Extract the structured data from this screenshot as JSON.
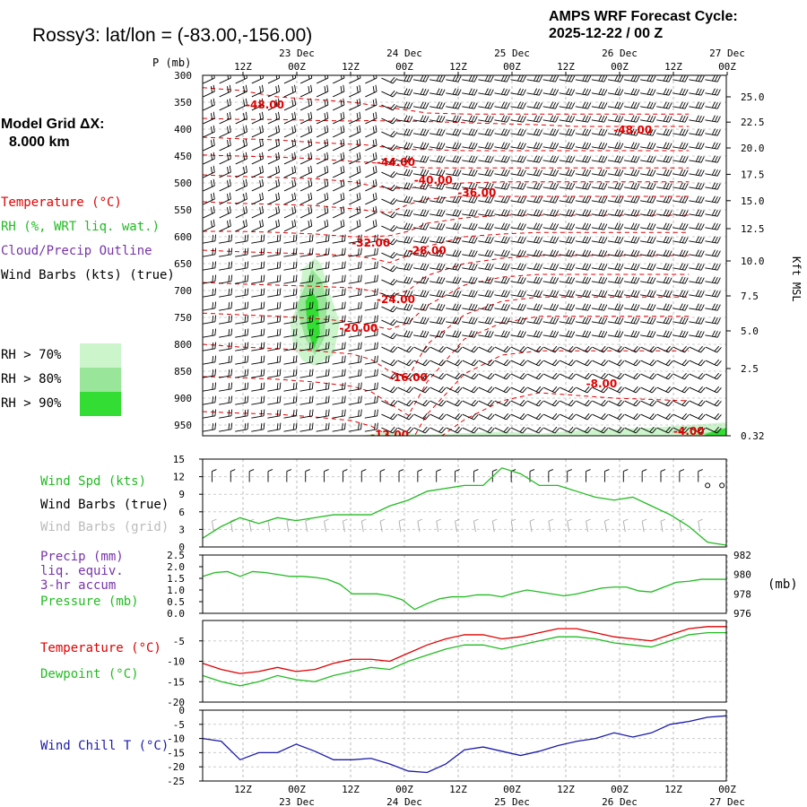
{
  "header": {
    "title": "Rossy3:  lat/lon = (-83.00,-156.00)",
    "cycle_line1": "AMPS WRF Forecast Cycle:",
    "cycle_line2": "2025-12-22 / 00  Z",
    "grid_title": "Model Grid ΔX:",
    "grid_value": "8.000 km"
  },
  "time_axis": {
    "hour_labels": [
      "12Z",
      "00Z",
      "12Z",
      "00Z",
      "12Z",
      "00Z",
      "12Z",
      "00Z",
      "12Z",
      "00Z"
    ],
    "day_labels": [
      "23 Dec",
      "24 Dec",
      "25 Dec",
      "26 Dec",
      "27 Dec"
    ]
  },
  "legend": {
    "temperature": "Temperature (°C)",
    "rh": "RH (%, WRT liq. wat.)",
    "cloud": "Cloud/Precip Outline",
    "barbs": "Wind Barbs (kts) (true)",
    "rh70": "RH > 70%",
    "rh80": "RH > 80%",
    "rh90": "RH > 90%",
    "colors": {
      "temp": "#e00000",
      "rh": "#22bb22",
      "cloud": "#7733aa",
      "rh70": "#ccf5cc",
      "rh80": "#99e599",
      "rh90": "#33dd33"
    }
  },
  "wind_panel": {
    "spd_label": "Wind Spd (kts)",
    "barbs_true": "Wind Barbs (true)",
    "barbs_grid": "Wind Barbs (grid)"
  },
  "precip_panel": {
    "precip_label": "Precip (mm)",
    "liq": "liq. equiv.",
    "accum": "3-hr accum",
    "pressure_label": "Pressure (mb)",
    "mb_unit": "(mb)"
  },
  "temp_panel": {
    "temp_label": "Temperature (°C)",
    "dew_label": "Dewpoint (°C)"
  },
  "chill_panel": {
    "chill_label": "Wind Chill T (°C)"
  },
  "chart_data": [
    {
      "type": "time-height cross-section",
      "y_axis_left_label": "P (mb)",
      "y_axis_right_label": "Kft MSL",
      "pressure_ticks": [
        "300",
        "350",
        "400",
        "450",
        "500",
        "550",
        "600",
        "650",
        "700",
        "750",
        "800",
        "850",
        "900",
        "950"
      ],
      "kft_ticks": [
        "25.0",
        "22.5",
        "20.0",
        "17.5",
        "15.0",
        "12.5",
        "10.0",
        "7.5",
        "5.0",
        "2.5",
        "0.32"
      ],
      "kft_tick_pressures": [
        340,
        387,
        435,
        484,
        533,
        585,
        645,
        710,
        775,
        845,
        970
      ],
      "temperature_labels": [
        {
          "text": "-48.00",
          "t_hours": 10,
          "p": 355
        },
        {
          "text": "-48.00",
          "t_hours": 69,
          "p": 402
        },
        {
          "text": "-44.00",
          "t_hours": 31,
          "p": 462
        },
        {
          "text": "-40.00",
          "t_hours": 37,
          "p": 495
        },
        {
          "text": "-36.00",
          "t_hours": 44,
          "p": 518
        },
        {
          "text": "-32.00",
          "t_hours": 27,
          "p": 612
        },
        {
          "text": "-28.00",
          "t_hours": 36,
          "p": 626
        },
        {
          "text": "-24.00",
          "t_hours": 31,
          "p": 717
        },
        {
          "text": "-20.00",
          "t_hours": 25,
          "p": 770
        },
        {
          "text": "-16.00",
          "t_hours": 33,
          "p": 862
        },
        {
          "text": "-8.00",
          "t_hours": 64,
          "p": 873
        },
        {
          "text": "-12.00",
          "t_hours": 30,
          "p": 968
        },
        {
          "text": "-4.00",
          "t_hours": 78,
          "p": 962
        }
      ],
      "temperature_isotherms_p": [
        {
          "name": "-48",
          "p": [
            323,
            328,
            340,
            345,
            350,
            355,
            360,
            365,
            370,
            372,
            372,
            372,
            372,
            372,
            372
          ]
        },
        {
          "name": "-46",
          "p": [
            380,
            382,
            382,
            384,
            385,
            384,
            385,
            385,
            386,
            388,
            390,
            392,
            395,
            395,
            395
          ]
        },
        {
          "name": "-44",
          "p": [
            415,
            418,
            420,
            425,
            428,
            430,
            435,
            438,
            438,
            440,
            440,
            440,
            440,
            440,
            440
          ]
        },
        {
          "name": "-42",
          "p": [
            448,
            450,
            452,
            455,
            460,
            462,
            466,
            470,
            472,
            472,
            472,
            472,
            472,
            472,
            472
          ]
        },
        {
          "name": "-40",
          "p": [
            485,
            488,
            490,
            492,
            498,
            505,
            510,
            510,
            505,
            500,
            498,
            498,
            498,
            498,
            498
          ]
        },
        {
          "name": "-36",
          "p": [
            535,
            538,
            540,
            542,
            548,
            552,
            555,
            540,
            530,
            525,
            525,
            525,
            525,
            525,
            525
          ]
        },
        {
          "name": "-32",
          "p": [
            590,
            590,
            592,
            595,
            600,
            600,
            598,
            590,
            575,
            565,
            560,
            560,
            560,
            560,
            560
          ]
        },
        {
          "name": "-28",
          "p": [
            625,
            628,
            630,
            632,
            635,
            640,
            648,
            635,
            618,
            600,
            595,
            592,
            592,
            592,
            592
          ]
        },
        {
          "name": "-24",
          "p": [
            685,
            688,
            690,
            692,
            695,
            700,
            710,
            700,
            672,
            650,
            640,
            635,
            635,
            635,
            635
          ]
        },
        {
          "name": "-20",
          "p": [
            742,
            745,
            748,
            752,
            758,
            765,
            772,
            760,
            728,
            690,
            675,
            670,
            670,
            670,
            670
          ]
        },
        {
          "name": "-16",
          "p": [
            800,
            805,
            808,
            812,
            818,
            828,
            850,
            860,
            800,
            745,
            720,
            712,
            712,
            712,
            712
          ]
        },
        {
          "name": "-12",
          "p": [
            860,
            862,
            865,
            870,
            878,
            888,
            910,
            932,
            870,
            790,
            760,
            748,
            748,
            748,
            748
          ]
        },
        {
          "name": "-8",
          "p": [
            925,
            928,
            930,
            935,
            942,
            952,
            970,
            990,
            930,
            855,
            820,
            812,
            812,
            812,
            812
          ]
        },
        {
          "name": "-4",
          "p": [
            990,
            990,
            990,
            990,
            990,
            990,
            990,
            990,
            990,
            940,
            905,
            890,
            895,
            900,
            905
          ]
        }
      ],
      "isotherm_t_hours": [
        0,
        6,
        12,
        18,
        24,
        27,
        30,
        33,
        36,
        42,
        48,
        54,
        60,
        66,
        78
      ],
      "rh_shading": [
        {
          "class": "rh70",
          "polygon_t_hours": [
            14,
            15.5,
            16,
            18,
            19,
            20,
            22,
            21,
            18,
            16,
            14.5,
            14
          ],
          "polygon_p": [
            760,
            720,
            660,
            640,
            650,
            690,
            760,
            820,
            840,
            830,
            800,
            760
          ]
        },
        {
          "class": "rh80",
          "polygon_t_hours": [
            15,
            16.5,
            17.5,
            19,
            20,
            19.5,
            18,
            16.5,
            15
          ],
          "polygon_p": [
            730,
            690,
            660,
            680,
            720,
            790,
            820,
            790,
            730
          ]
        },
        {
          "class": "rh90",
          "polygon_t_hours": [
            16.5,
            17.5,
            18.5,
            18.8,
            17.8,
            16.8,
            16.5
          ],
          "polygon_p": [
            720,
            700,
            720,
            780,
            810,
            770,
            720
          ]
        },
        {
          "class": "rh70",
          "polygon_t_hours": [
            0,
            6,
            12,
            18,
            24,
            30,
            36,
            42,
            48,
            54,
            60,
            66,
            72,
            78,
            84,
            84,
            0
          ],
          "polygon_p": [
            990,
            985,
            982,
            975,
            972,
            962,
            968,
            965,
            962,
            966,
            960,
            958,
            955,
            950,
            945,
            1000,
            1000
          ]
        },
        {
          "class": "rh80",
          "polygon_t_hours": [
            24,
            27,
            30,
            34,
            40,
            48,
            56,
            64,
            72,
            78,
            84,
            84,
            24
          ],
          "polygon_p": [
            990,
            982,
            972,
            978,
            985,
            982,
            985,
            978,
            975,
            968,
            960,
            1000,
            1000
          ]
        },
        {
          "class": "rh90",
          "polygon_t_hours": [
            78,
            81,
            84,
            84,
            78
          ],
          "polygon_p": [
            990,
            965,
            955,
            1000,
            1000
          ]
        }
      ],
      "time_range_hours": [
        0,
        84
      ],
      "p_range_mb": [
        300,
        1000
      ]
    },
    {
      "type": "line",
      "title": "Wind Spd (kts)",
      "y_ticks": [
        "15",
        "12",
        "9",
        "6",
        "3",
        "0"
      ],
      "ylim": [
        0,
        15
      ],
      "x_hours": [
        0,
        3,
        6,
        9,
        12,
        15,
        18,
        21,
        24,
        27,
        30,
        33,
        36,
        39,
        42,
        45,
        48,
        51,
        54,
        57,
        60,
        63,
        66,
        69,
        72,
        75,
        78,
        81,
        84
      ],
      "series": [
        {
          "name": "Wind Spd",
          "color": "#22bb22",
          "values": [
            1.5,
            3.5,
            5,
            4,
            5,
            4.5,
            5,
            5.5,
            5.5,
            5.5,
            7,
            8,
            9.5,
            10,
            10.5,
            10.5,
            13.5,
            12.5,
            10.5,
            10.5,
            9.5,
            8.5,
            8,
            8.5,
            7,
            5.5,
            3.5,
            0.8,
            0.3
          ]
        }
      ]
    },
    {
      "type": "line",
      "title": "Precip (mm) / Pressure (mb)",
      "left_ticks": [
        "2.5",
        "2.0",
        "1.5",
        "1.0",
        "0.5",
        "0.0"
      ],
      "right_ticks": [
        "982",
        "980",
        "978",
        "976"
      ],
      "precip_ylim": [
        0,
        2.5
      ],
      "pressure_ylim": [
        976,
        982
      ],
      "x_hours": [
        0,
        2,
        4,
        6,
        8,
        10,
        12,
        14,
        16,
        18,
        20,
        22,
        24,
        26,
        28,
        30,
        32,
        34,
        36,
        38,
        40,
        42,
        44,
        46,
        48,
        50,
        52,
        54,
        56,
        58,
        60,
        62,
        64,
        66,
        68,
        70,
        72,
        74,
        76,
        78,
        80,
        82,
        84
      ],
      "series": [
        {
          "name": "Pressure",
          "color": "#22bb22",
          "values": [
            979.8,
            980.2,
            980.3,
            979.8,
            980.3,
            980.2,
            980.0,
            979.8,
            979.8,
            979.7,
            979.5,
            979.0,
            978.0,
            978.0,
            978.0,
            977.8,
            977.4,
            976.4,
            977.0,
            977.5,
            977.7,
            977.7,
            977.9,
            977.9,
            977.7,
            978.1,
            978.4,
            978.2,
            978.0,
            977.8,
            978.0,
            978.3,
            978.6,
            978.7,
            978.7,
            978.3,
            978.2,
            978.7,
            979.2,
            979.3,
            979.5,
            979.5,
            979.5
          ]
        }
      ]
    },
    {
      "type": "line",
      "title": "Temperature / Dewpoint (°C)",
      "y_ticks": [
        "-5",
        "-10",
        "-15",
        "-20"
      ],
      "ylim": [
        -20,
        0
      ],
      "x_hours": [
        0,
        3,
        6,
        9,
        12,
        15,
        18,
        21,
        24,
        27,
        30,
        33,
        36,
        39,
        42,
        45,
        48,
        51,
        54,
        57,
        60,
        63,
        66,
        69,
        72,
        75,
        78,
        81,
        84
      ],
      "series": [
        {
          "name": "Temperature",
          "color": "#e00000",
          "values": [
            -10.5,
            -12,
            -13,
            -12.5,
            -11.5,
            -12.5,
            -12,
            -10.5,
            -9.5,
            -9.5,
            -10,
            -8,
            -6,
            -4.5,
            -3.5,
            -3.5,
            -4.5,
            -4,
            -3,
            -2,
            -2,
            -3,
            -4,
            -4.5,
            -5,
            -3.5,
            -2,
            -1.5,
            -1.5
          ]
        },
        {
          "name": "Dewpoint",
          "color": "#22bb22",
          "values": [
            -13.5,
            -15,
            -16,
            -15,
            -13.5,
            -14.5,
            -15,
            -13.5,
            -12.5,
            -11.5,
            -12,
            -10,
            -8.5,
            -7,
            -6,
            -6,
            -7,
            -6,
            -5,
            -4,
            -4,
            -4.5,
            -5.5,
            -6,
            -6.5,
            -5,
            -3.5,
            -3,
            -3
          ]
        }
      ]
    },
    {
      "type": "line",
      "title": "Wind Chill T (°C)",
      "y_ticks": [
        "0",
        "-5",
        "-10",
        "-15",
        "-20",
        "-25"
      ],
      "ylim": [
        -25,
        0
      ],
      "x_hours": [
        0,
        3,
        6,
        9,
        12,
        15,
        18,
        21,
        24,
        27,
        30,
        33,
        36,
        39,
        42,
        45,
        48,
        51,
        54,
        57,
        60,
        63,
        66,
        69,
        72,
        75,
        78,
        81,
        84
      ],
      "series": [
        {
          "name": "Wind Chill",
          "color": "#1a1aaa",
          "values": [
            -10,
            -11,
            -17.5,
            -15,
            -15,
            -12,
            -14.5,
            -17.5,
            -17.5,
            -17,
            -19,
            -21.5,
            -22,
            -19,
            -14,
            -13,
            -14.5,
            -16,
            -14.5,
            -12.5,
            -11,
            -10,
            -8,
            -9.5,
            -8,
            -5,
            -4,
            -2.5,
            -2
          ]
        }
      ]
    }
  ]
}
